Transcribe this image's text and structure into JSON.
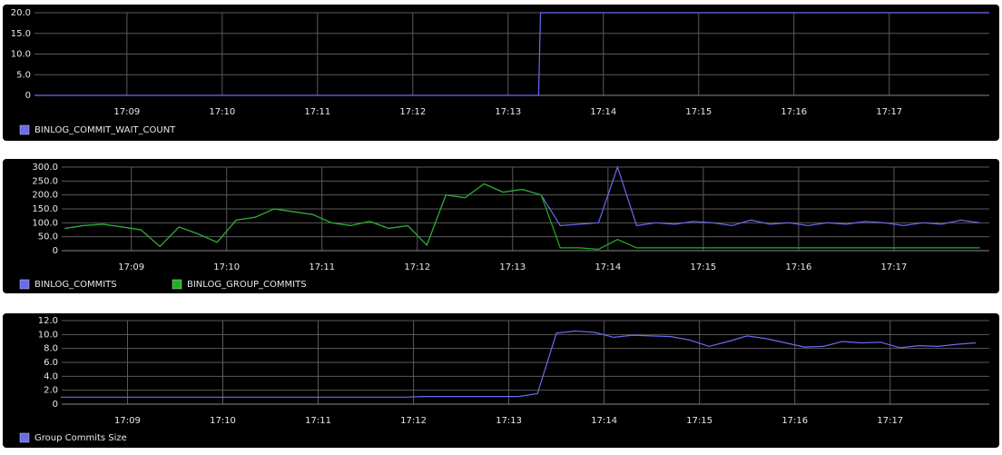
{
  "chart_data": [
    {
      "type": "line",
      "x": [
        8.03,
        13.32,
        13.34,
        18.05
      ],
      "series": [
        {
          "name": "BINLOG_COMMIT_WAIT_COUNT",
          "color": "#6b6bf0",
          "values": [
            0,
            0,
            20,
            20
          ]
        }
      ],
      "xlim": [
        8.03,
        18.05
      ],
      "xticks": [
        {
          "value": 9,
          "label": "17:09"
        },
        {
          "value": 10,
          "label": "17:10"
        },
        {
          "value": 11,
          "label": "17:11"
        },
        {
          "value": 12,
          "label": "17:12"
        },
        {
          "value": 13,
          "label": "17:13"
        },
        {
          "value": 14,
          "label": "17:14"
        },
        {
          "value": 15,
          "label": "17:15"
        },
        {
          "value": 16,
          "label": "17:16"
        },
        {
          "value": 17,
          "label": "17:17"
        }
      ],
      "ylim": [
        0,
        20
      ],
      "yticks": [
        0,
        {
          "value": 5,
          "label": "5.0"
        },
        {
          "value": 10,
          "label": "10.0"
        },
        {
          "value": 15,
          "label": "15.0"
        },
        {
          "value": 20,
          "label": "20.0"
        }
      ],
      "grid": true
    },
    {
      "type": "line",
      "x": [
        8.3,
        8.5,
        8.7,
        8.9,
        9.1,
        9.3,
        9.5,
        9.7,
        9.9,
        10.1,
        10.3,
        10.5,
        10.7,
        10.9,
        11.1,
        11.3,
        11.5,
        11.7,
        11.9,
        12.1,
        12.3,
        12.5,
        12.7,
        12.9,
        13.1,
        13.3,
        13.5,
        13.7,
        13.9,
        14.1,
        14.3,
        14.5,
        14.7,
        14.9,
        15.1,
        15.3,
        15.5,
        15.7,
        15.9,
        16.1,
        16.3,
        16.5,
        16.7,
        16.9,
        17.1,
        17.3,
        17.5,
        17.7,
        17.9
      ],
      "series": [
        {
          "name": "BINLOG_COMMITS",
          "color": "#6b6bf0",
          "values": [
            80,
            90,
            95,
            85,
            75,
            15,
            85,
            60,
            30,
            110,
            120,
            150,
            140,
            130,
            100,
            90,
            105,
            80,
            90,
            20,
            200,
            190,
            240,
            210,
            220,
            200,
            90,
            95,
            100,
            300,
            90,
            100,
            95,
            105,
            100,
            90,
            110,
            95,
            100,
            90,
            100,
            95,
            105,
            100,
            90,
            100,
            95,
            110,
            100
          ]
        },
        {
          "name": "BINLOG_GROUP_COMMITS",
          "color": "#22b022",
          "values": [
            80,
            90,
            95,
            85,
            75,
            15,
            85,
            60,
            30,
            110,
            120,
            150,
            140,
            130,
            100,
            90,
            105,
            80,
            90,
            20,
            200,
            190,
            240,
            210,
            220,
            200,
            10,
            10,
            5,
            40,
            10,
            10,
            10,
            10,
            10,
            10,
            10,
            10,
            10,
            10,
            10,
            10,
            10,
            10,
            10,
            10,
            10,
            10,
            10
          ]
        }
      ],
      "xlim": [
        8.27,
        18.0
      ],
      "xticks": [
        {
          "value": 9,
          "label": "17:09"
        },
        {
          "value": 10,
          "label": "17:10"
        },
        {
          "value": 11,
          "label": "17:11"
        },
        {
          "value": 12,
          "label": "17:12"
        },
        {
          "value": 13,
          "label": "17:13"
        },
        {
          "value": 14,
          "label": "17:14"
        },
        {
          "value": 15,
          "label": "17:15"
        },
        {
          "value": 16,
          "label": "17:16"
        },
        {
          "value": 17,
          "label": "17:17"
        }
      ],
      "ylim": [
        0,
        300
      ],
      "yticks": [
        0,
        {
          "value": 50,
          "label": "50.0"
        },
        {
          "value": 100,
          "label": "100.0"
        },
        {
          "value": 150,
          "label": "150.0"
        },
        {
          "value": 200,
          "label": "200.0"
        },
        {
          "value": 250,
          "label": "250.0"
        },
        {
          "value": 300,
          "label": "300.0"
        }
      ],
      "grid": true
    },
    {
      "type": "line",
      "x": [
        8.3,
        8.5,
        8.7,
        8.9,
        9.1,
        9.3,
        9.5,
        9.7,
        9.9,
        10.1,
        10.3,
        10.5,
        10.7,
        10.9,
        11.1,
        11.3,
        11.5,
        11.7,
        11.9,
        12.1,
        12.3,
        12.5,
        12.7,
        12.9,
        13.1,
        13.3,
        13.5,
        13.7,
        13.9,
        14.1,
        14.3,
        14.5,
        14.7,
        14.9,
        15.1,
        15.3,
        15.5,
        15.7,
        15.9,
        16.1,
        16.3,
        16.5,
        16.7,
        16.9,
        17.1,
        17.3,
        17.5,
        17.7,
        17.9
      ],
      "series": [
        {
          "name": "Group Commits Size",
          "color": "#6b6bf0",
          "values": [
            1.0,
            1.0,
            1.0,
            1.0,
            1.0,
            1.0,
            1.0,
            1.0,
            1.0,
            1.0,
            1.0,
            1.0,
            1.0,
            1.0,
            1.0,
            1.0,
            1.0,
            1.0,
            1.0,
            1.1,
            1.1,
            1.1,
            1.1,
            1.1,
            1.1,
            1.5,
            10.2,
            10.5,
            10.3,
            9.6,
            9.9,
            9.8,
            9.7,
            9.2,
            8.3,
            9.0,
            9.8,
            9.4,
            8.8,
            8.2,
            8.3,
            9.0,
            8.8,
            8.9,
            8.1,
            8.4,
            8.3,
            8.6,
            8.8
          ]
        }
      ],
      "xlim": [
        8.31,
        18.04
      ],
      "xticks": [
        {
          "value": 9,
          "label": "17:09"
        },
        {
          "value": 10,
          "label": "17:10"
        },
        {
          "value": 11,
          "label": "17:11"
        },
        {
          "value": 12,
          "label": "17:12"
        },
        {
          "value": 13,
          "label": "17:13"
        },
        {
          "value": 14,
          "label": "17:14"
        },
        {
          "value": 15,
          "label": "17:15"
        },
        {
          "value": 16,
          "label": "17:16"
        },
        {
          "value": 17,
          "label": "17:17"
        }
      ],
      "ylim": [
        0,
        12
      ],
      "yticks": [
        0,
        {
          "value": 2,
          "label": "2.0"
        },
        {
          "value": 4,
          "label": "4.0"
        },
        {
          "value": 6,
          "label": "6.0"
        },
        {
          "value": 8,
          "label": "8.0"
        },
        {
          "value": 10,
          "label": "10.0"
        },
        {
          "value": 12,
          "label": "12.0"
        }
      ],
      "grid": true
    }
  ]
}
